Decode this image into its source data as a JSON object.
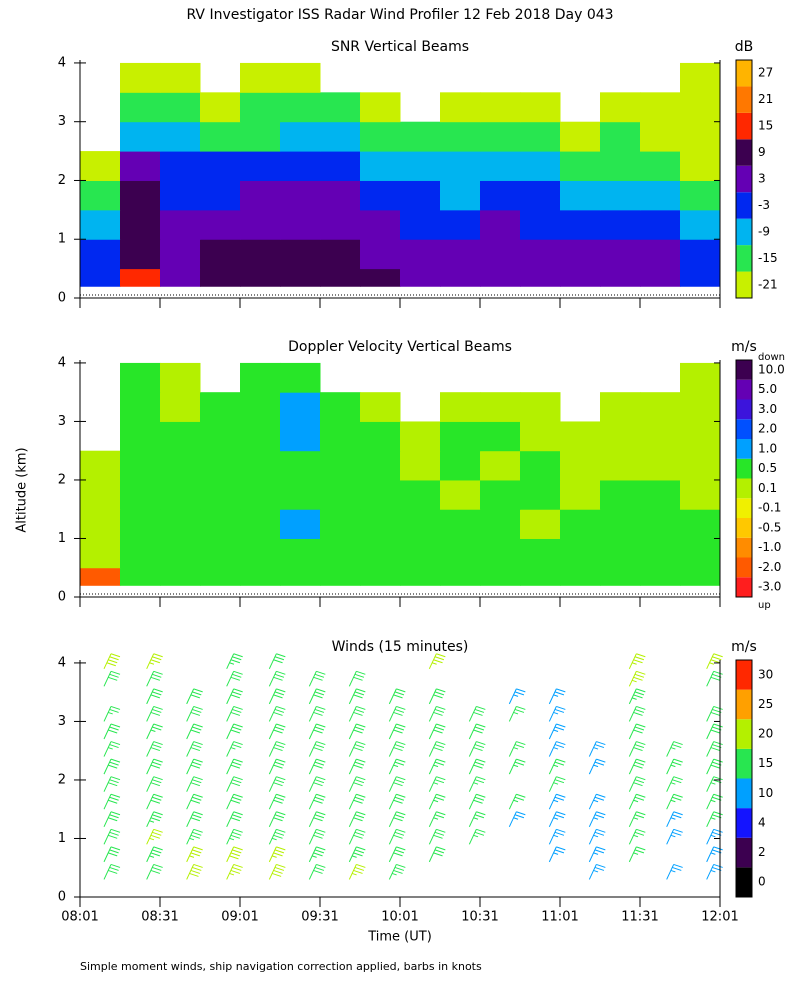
{
  "title": "RV Investigator ISS Radar Wind Profiler  12 Feb 2018 Day 043",
  "y_axis_label": "Altitude (km)",
  "footnote": "Simple moment winds, ship navigation correction applied, barbs in knots",
  "time_axis": {
    "label": "Time (UT)",
    "xlim": [
      481,
      721
    ],
    "xticks": [
      {
        "value": 481,
        "label": "08:01"
      },
      {
        "value": 511,
        "label": "08:31"
      },
      {
        "value": 541,
        "label": "09:01"
      },
      {
        "value": 571,
        "label": "09:31"
      },
      {
        "value": 601,
        "label": "10:01"
      },
      {
        "value": 631,
        "label": "10:31"
      },
      {
        "value": 661,
        "label": "11:01"
      },
      {
        "value": 691,
        "label": "11:31"
      },
      {
        "value": 721,
        "label": "12:01"
      }
    ]
  },
  "chart_data": [
    {
      "type": "heatmap",
      "title": "SNR Vertical Beams",
      "unit": "dB",
      "ylim": [
        0,
        4.05
      ],
      "yticks": [
        0,
        1,
        2,
        3,
        4
      ],
      "x_edges": [
        481,
        496,
        511,
        526,
        541,
        556,
        571,
        586,
        601,
        616,
        631,
        646,
        661,
        676,
        691,
        706,
        721
      ],
      "y_edges": [
        0.2,
        0.5,
        1,
        1.5,
        2,
        2.5,
        3,
        3.5,
        4
      ],
      "values": [
        [
          -3,
          15,
          3,
          9,
          9,
          9,
          9,
          9,
          3,
          3,
          3,
          3,
          3,
          3,
          3,
          -3
        ],
        [
          -3,
          9,
          3,
          9,
          9,
          9,
          9,
          3,
          3,
          3,
          3,
          3,
          3,
          3,
          3,
          -3
        ],
        [
          -9,
          9,
          3,
          3,
          3,
          3,
          3,
          3,
          -3,
          -3,
          3,
          -3,
          -3,
          -3,
          -3,
          -9
        ],
        [
          -15,
          9,
          -3,
          -3,
          3,
          3,
          3,
          -3,
          -3,
          -9,
          -3,
          -3,
          -9,
          -9,
          -9,
          -15
        ],
        [
          -21,
          3,
          -3,
          -3,
          -3,
          -3,
          -3,
          -9,
          -9,
          -9,
          -9,
          -9,
          -15,
          -15,
          -15,
          -21
        ],
        [
          null,
          -9,
          -9,
          -15,
          -15,
          -9,
          -9,
          -15,
          -15,
          -15,
          -15,
          -15,
          -21,
          -15,
          -21,
          -21
        ],
        [
          null,
          -15,
          -15,
          -21,
          -15,
          -15,
          -15,
          -21,
          null,
          -21,
          -21,
          -21,
          null,
          -21,
          -21,
          -21
        ],
        [
          null,
          -21,
          -21,
          null,
          -21,
          -21,
          null,
          null,
          null,
          null,
          null,
          null,
          null,
          null,
          null,
          -21
        ]
      ],
      "colorbar": {
        "binning": "nearest",
        "levels": [
          -21,
          -15,
          -9,
          -3,
          3,
          9,
          15,
          21,
          27
        ],
        "colors": [
          "#c8f000",
          "#28e650",
          "#00b4f0",
          "#0028f0",
          "#6400b4",
          "#3c0050",
          "#ff2800",
          "#ff7800",
          "#ffb400"
        ]
      }
    },
    {
      "type": "heatmap",
      "title": "Doppler Velocity Vertical Beams",
      "unit": "m/s",
      "ylim": [
        0,
        4.05
      ],
      "yticks": [
        0,
        1,
        2,
        3,
        4
      ],
      "x_edges": [
        481,
        496,
        511,
        526,
        541,
        556,
        571,
        586,
        601,
        616,
        631,
        646,
        661,
        676,
        691,
        706,
        721
      ],
      "y_edges": [
        0.2,
        0.5,
        1,
        1.5,
        2,
        2.5,
        3,
        3.5,
        4
      ],
      "values": [
        [
          -2,
          0.5,
          0.5,
          0.5,
          0.5,
          0.5,
          0.5,
          0.5,
          0.5,
          0.5,
          0.5,
          0.5,
          0.5,
          0.5,
          0.5,
          0.5
        ],
        [
          0.1,
          0.5,
          0.5,
          0.5,
          0.5,
          0.5,
          0.5,
          0.5,
          0.5,
          0.5,
          0.5,
          0.5,
          0.5,
          0.5,
          0.5,
          0.5
        ],
        [
          0.1,
          0.5,
          0.5,
          0.5,
          0.5,
          1,
          0.5,
          0.5,
          0.5,
          0.5,
          0.5,
          0.1,
          0.5,
          0.5,
          0.5,
          0.5
        ],
        [
          0.1,
          0.5,
          0.5,
          0.5,
          0.5,
          0.5,
          0.5,
          0.5,
          0.5,
          0.1,
          0.5,
          0.5,
          0.1,
          0.5,
          0.5,
          0.1
        ],
        [
          0.1,
          0.5,
          0.5,
          0.5,
          0.5,
          0.5,
          0.5,
          0.5,
          0.1,
          0.5,
          0.1,
          0.5,
          0.1,
          0.1,
          0.1,
          0.1
        ],
        [
          null,
          0.5,
          0.5,
          0.5,
          0.5,
          1,
          0.5,
          0.5,
          0.1,
          0.5,
          0.5,
          0.1,
          0.1,
          0.1,
          0.1,
          0.1
        ],
        [
          null,
          0.5,
          0.1,
          0.5,
          0.5,
          1,
          0.5,
          0.1,
          null,
          0.1,
          0.1,
          0.1,
          null,
          0.1,
          0.1,
          0.1
        ],
        [
          null,
          0.5,
          0.1,
          null,
          0.5,
          0.5,
          null,
          null,
          null,
          null,
          null,
          null,
          null,
          null,
          null,
          0.1
        ]
      ],
      "colorbar": {
        "binning": "nearest",
        "top_label": "down",
        "bottom_label": "up",
        "levels": [
          {
            "value": -3,
            "label": "-3.0"
          },
          {
            "value": -2,
            "label": "-2.0"
          },
          {
            "value": -1,
            "label": "-1.0"
          },
          -0.5,
          -0.1,
          0.1,
          0.5,
          {
            "value": 1,
            "label": "1.0"
          },
          {
            "value": 2,
            "label": "2.0"
          },
          {
            "value": 3,
            "label": "3.0"
          },
          {
            "value": 5,
            "label": "5.0"
          },
          {
            "value": 10,
            "label": "10.0"
          }
        ],
        "colors": [
          "#ff1e1e",
          "#ff5a00",
          "#ff8c00",
          "#ffc800",
          "#f0f000",
          "#b4f000",
          "#28e628",
          "#00a0ff",
          "#0050ff",
          "#3c14dc",
          "#6400b4",
          "#3c0050"
        ]
      }
    },
    {
      "type": "barbs",
      "title": "Winds (15 minutes)",
      "unit": "m/s",
      "ylim": [
        0,
        4.05
      ],
      "yticks": [
        0,
        1,
        2,
        3,
        4
      ],
      "x": [
        490,
        506,
        521,
        536,
        552,
        567,
        582,
        597,
        612,
        627,
        642,
        657,
        672,
        687,
        701,
        716
      ],
      "y": [
        0.3,
        0.6,
        0.9,
        1.2,
        1.5,
        1.8,
        2.1,
        2.4,
        2.7,
        3.0,
        3.3,
        3.6,
        3.9
      ],
      "values": [
        [
          17,
          18,
          18,
          17,
          16,
          16,
          16,
          15,
          16,
          15,
          null,
          17,
          21
        ],
        [
          18,
          19,
          20,
          19,
          18,
          17,
          16,
          16,
          15,
          16,
          17,
          18,
          20
        ],
        [
          21,
          20,
          19,
          18,
          17,
          17,
          16,
          16,
          16,
          17,
          18,
          null,
          null
        ],
        [
          20,
          21,
          19,
          18,
          18,
          17,
          16,
          15,
          16,
          16,
          17,
          18,
          19
        ],
        [
          21,
          20,
          19,
          18,
          17,
          17,
          16,
          16,
          16,
          17,
          17,
          18,
          18
        ],
        [
          18,
          19,
          18,
          17,
          17,
          16,
          16,
          16,
          17,
          17,
          17,
          18,
          null
        ],
        [
          20,
          19,
          18,
          17,
          17,
          16,
          17,
          16,
          16,
          17,
          17,
          17,
          null
        ],
        [
          19,
          18,
          17,
          17,
          16,
          16,
          15,
          16,
          16,
          17,
          17,
          null,
          null
        ],
        [
          null,
          16,
          16,
          15,
          15,
          15,
          15,
          16,
          16,
          17,
          17,
          null,
          20
        ],
        [
          null,
          null,
          15,
          15,
          16,
          15,
          16,
          16,
          17,
          17,
          null,
          null,
          null
        ],
        [
          null,
          null,
          null,
          14,
          15,
          null,
          15,
          15,
          null,
          15,
          14,
          null,
          null
        ],
        [
          null,
          13,
          14,
          14,
          14,
          15,
          15,
          14,
          14,
          14,
          13,
          null,
          null
        ],
        [
          13,
          13,
          14,
          14,
          14,
          null,
          13,
          14,
          null,
          null,
          null,
          null,
          null
        ],
        [
          null,
          15,
          15,
          15,
          15,
          16,
          16,
          16,
          17,
          18,
          19,
          20,
          20
        ],
        [
          13,
          null,
          14,
          14,
          15,
          15,
          15,
          15,
          null,
          null,
          null,
          null,
          null
        ],
        [
          14,
          13,
          14,
          15,
          15,
          15,
          16,
          16,
          16,
          17,
          null,
          18,
          20
        ]
      ],
      "colorbar": {
        "binning": "floor",
        "levels": [
          0,
          2,
          4,
          10,
          15,
          20,
          25,
          30
        ],
        "colors": [
          "#000000",
          "#3c0050",
          "#1414ff",
          "#00a0ff",
          "#28e650",
          "#b4f000",
          "#ffa000",
          "#ff2800"
        ]
      }
    }
  ]
}
